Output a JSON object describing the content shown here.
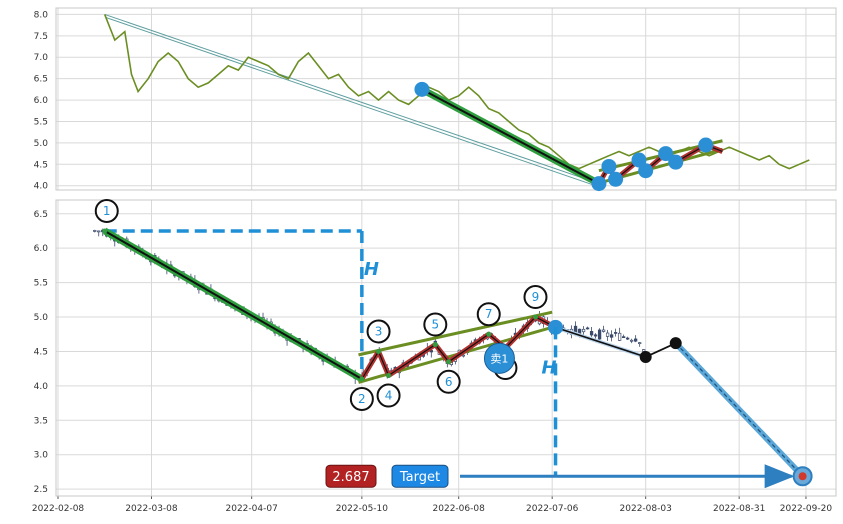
{
  "chart_data": [
    {
      "type": "line",
      "panel": "overview",
      "title": "",
      "xlabel": "",
      "ylabel": "",
      "ylim": [
        3.9,
        8.15
      ],
      "y_ticks": [
        "4.0",
        "4.5",
        "5.0",
        "5.5",
        "6.0",
        "6.5",
        "7.0",
        "7.5",
        "8.0"
      ],
      "grid": true,
      "price_line_color": "#6b8e23",
      "series": [
        {
          "x": [
            "2022-02-22",
            "2022-02-25",
            "2022-02-28",
            "2022-03-02",
            "2022-03-04",
            "2022-03-07",
            "2022-03-10",
            "2022-03-13",
            "2022-03-16",
            "2022-03-19",
            "2022-03-22",
            "2022-03-25",
            "2022-03-28",
            "2022-03-31",
            "2022-04-03",
            "2022-04-06",
            "2022-04-09",
            "2022-04-12",
            "2022-04-15",
            "2022-04-18",
            "2022-04-21",
            "2022-04-24",
            "2022-04-27",
            "2022-04-30",
            "2022-05-03",
            "2022-05-06",
            "2022-05-09",
            "2022-05-12",
            "2022-05-15",
            "2022-05-18",
            "2022-05-21",
            "2022-05-24",
            "2022-05-27",
            "2022-05-30",
            "2022-06-02",
            "2022-06-05",
            "2022-06-08",
            "2022-06-11",
            "2022-06-14",
            "2022-06-17",
            "2022-06-20",
            "2022-06-23",
            "2022-06-26",
            "2022-06-29",
            "2022-07-02",
            "2022-07-05",
            "2022-07-08",
            "2022-07-11",
            "2022-07-14",
            "2022-07-17",
            "2022-07-20",
            "2022-07-23",
            "2022-07-26",
            "2022-07-29",
            "2022-08-01",
            "2022-08-04",
            "2022-08-07",
            "2022-08-10",
            "2022-08-13",
            "2022-08-16",
            "2022-08-19",
            "2022-08-22",
            "2022-08-25",
            "2022-08-28",
            "2022-08-31",
            "2022-09-03",
            "2022-09-06",
            "2022-09-09",
            "2022-09-12",
            "2022-09-15",
            "2022-09-18",
            "2022-09-21"
          ],
          "values": [
            8.0,
            7.4,
            7.6,
            6.6,
            6.2,
            6.5,
            6.9,
            7.1,
            6.9,
            6.5,
            6.3,
            6.4,
            6.6,
            6.8,
            6.7,
            7.0,
            6.9,
            6.8,
            6.6,
            6.5,
            6.9,
            7.1,
            6.8,
            6.5,
            6.6,
            6.3,
            6.1,
            6.2,
            6.0,
            6.2,
            6.0,
            5.9,
            6.1,
            6.3,
            6.2,
            6.0,
            6.1,
            6.3,
            6.1,
            5.8,
            5.7,
            5.5,
            5.3,
            5.2,
            5.0,
            4.9,
            4.7,
            4.5,
            4.4,
            4.5,
            4.6,
            4.7,
            4.8,
            4.7,
            4.8,
            4.9,
            4.8,
            4.7,
            4.8,
            4.9,
            4.8,
            4.7,
            4.8,
            4.9,
            4.8,
            4.7,
            4.6,
            4.7,
            4.5,
            4.4,
            4.5,
            4.6
          ]
        }
      ],
      "points": [
        {
          "x": "2022-05-28",
          "y": 6.25
        },
        {
          "x": "2022-07-20",
          "y": 4.05
        },
        {
          "x": "2022-07-23",
          "y": 4.45
        },
        {
          "x": "2022-07-25",
          "y": 4.15
        },
        {
          "x": "2022-08-01",
          "y": 4.6
        },
        {
          "x": "2022-08-03",
          "y": 4.35
        },
        {
          "x": "2022-08-09",
          "y": 4.75
        },
        {
          "x": "2022-08-12",
          "y": 4.55
        },
        {
          "x": "2022-08-21",
          "y": 4.95
        }
      ]
    },
    {
      "type": "candlestick",
      "panel": "detail",
      "title": "",
      "xlabel": "",
      "ylabel": "",
      "ylim": [
        2.4,
        6.7
      ],
      "y_ticks": [
        "2.5",
        "3.0",
        "3.5",
        "4.0",
        "4.5",
        "5.0",
        "5.5",
        "6.0",
        "6.5"
      ],
      "x_ticks": [
        "2022-02-08",
        "2022-03-08",
        "2022-04-07",
        "2022-05-10",
        "2022-06-08",
        "2022-07-06",
        "2022-08-03",
        "2022-08-31",
        "2022-09-20"
      ],
      "grid": true,
      "wave_points": [
        {
          "label": "1",
          "x": "2022-02-22",
          "y": 6.25
        },
        {
          "label": "2",
          "x": "2022-05-10",
          "y": 4.1
        },
        {
          "label": "3",
          "x": "2022-05-15",
          "y": 4.5
        },
        {
          "label": "4",
          "x": "2022-05-18",
          "y": 4.15
        },
        {
          "label": "5",
          "x": "2022-06-01",
          "y": 4.6
        },
        {
          "label": "6",
          "x": "2022-06-05",
          "y": 4.35
        },
        {
          "label": "7",
          "x": "2022-06-17",
          "y": 4.75
        },
        {
          "label": "8",
          "x": "2022-06-22",
          "y": 4.55
        },
        {
          "label": "9",
          "x": "2022-07-01",
          "y": 5.0
        }
      ],
      "sell_signal": {
        "label": "卖1",
        "x": "2022-06-22",
        "y": 4.4
      },
      "projection": [
        {
          "x": "2022-07-07",
          "y": 4.85
        },
        {
          "x": "2022-08-03",
          "y": 4.42
        },
        {
          "x": "2022-08-12",
          "y": 4.62
        },
        {
          "x": "2022-09-19",
          "y": 2.687
        }
      ],
      "measure_label": "H",
      "target_label": "Target",
      "target_value": "2.687",
      "colors": {
        "down_trend": "#2e9e3e",
        "wave": "#b03030",
        "channel": "#6b8e23",
        "measure": "#1f8fd6",
        "projection": "#5aa7d8",
        "target_badge": "#1e88e5",
        "value_badge": "#b22222"
      }
    }
  ]
}
